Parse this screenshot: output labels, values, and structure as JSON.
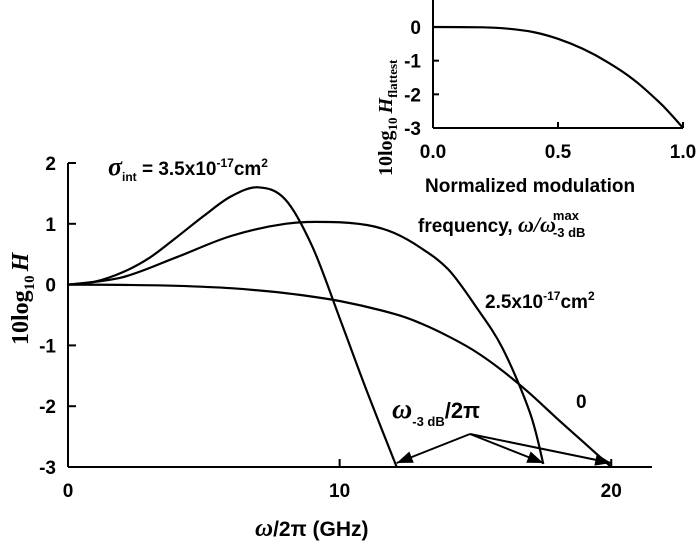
{
  "chart_data": [
    {
      "type": "line",
      "xlabel": "ω/2π (GHz)",
      "ylabel": "10log10H",
      "xlim": [
        0,
        21.5
      ],
      "ylim": [
        -3,
        2
      ],
      "x_ticks": [
        "0",
        "10",
        "20"
      ],
      "y_ticks": [
        "2",
        "1",
        "0",
        "-1",
        "-2",
        "-3"
      ],
      "grid": false,
      "series": [
        {
          "name": "σint = 3.5x10-17cm2",
          "x": [
            0,
            1,
            2,
            3,
            4,
            5,
            6,
            7,
            8,
            9,
            10,
            11,
            12.1
          ],
          "y": [
            0,
            0.05,
            0.2,
            0.44,
            0.78,
            1.13,
            1.45,
            1.6,
            1.4,
            0.62,
            -0.55,
            -1.75,
            -3
          ]
        },
        {
          "name": "2.5x10-17cm2",
          "x": [
            0,
            2,
            4,
            6,
            8,
            9.6,
            11,
            12,
            13,
            14,
            15,
            16,
            17,
            17.5
          ],
          "y": [
            0,
            0.12,
            0.45,
            0.8,
            1.0,
            1.03,
            0.98,
            0.85,
            0.6,
            0.25,
            -0.35,
            -1.05,
            -2.1,
            -2.95
          ]
        },
        {
          "name": "0",
          "x": [
            0,
            2,
            4,
            6,
            8,
            10,
            12,
            13,
            14,
            15,
            16,
            17,
            18,
            19,
            20
          ],
          "y": [
            0,
            -0.005,
            -0.02,
            -0.06,
            -0.14,
            -0.27,
            -0.48,
            -0.64,
            -0.85,
            -1.1,
            -1.42,
            -1.79,
            -2.2,
            -2.6,
            -3
          ]
        }
      ],
      "annotations": {
        "sigma_symbol": "σ",
        "sigma_sub": "int",
        "sigma_value": " = 3.5x10",
        "sigma_exp": "-17",
        "sigma_unit": "cm",
        "sigma_unit_exp": "2",
        "mid_value": "2.5x10",
        "mid_exp": "-17",
        "mid_unit": "cm",
        "mid_unit_exp": "2",
        "zero_label": "0",
        "omega_symbol": "ω",
        "omega_sub": "-3 dB",
        "omega_tail": "/2π",
        "arrow_targets_x": [
          12.1,
          17.5,
          20
        ]
      }
    },
    {
      "type": "line",
      "xlabel_line1": "Normalized modulation",
      "xlabel_line2": "frequency, ω/ω",
      "xlabel_sup": "max",
      "xlabel_sub": "-3 dB",
      "ylabel": "10log10Hflattest",
      "xlim": [
        0,
        1
      ],
      "ylim": [
        -3,
        0
      ],
      "x_ticks": [
        "0.0",
        "0.5",
        "1.0"
      ],
      "y_ticks": [
        "0",
        "-1",
        "-2",
        "-3"
      ],
      "series": [
        {
          "x": [
            0,
            0.2,
            0.3,
            0.4,
            0.5,
            0.6,
            0.7,
            0.8,
            0.9,
            0.95,
            1.0
          ],
          "y": [
            0,
            -0.01,
            -0.05,
            -0.15,
            -0.35,
            -0.65,
            -1.05,
            -1.55,
            -2.2,
            -2.58,
            -3.0
          ]
        }
      ]
    }
  ]
}
